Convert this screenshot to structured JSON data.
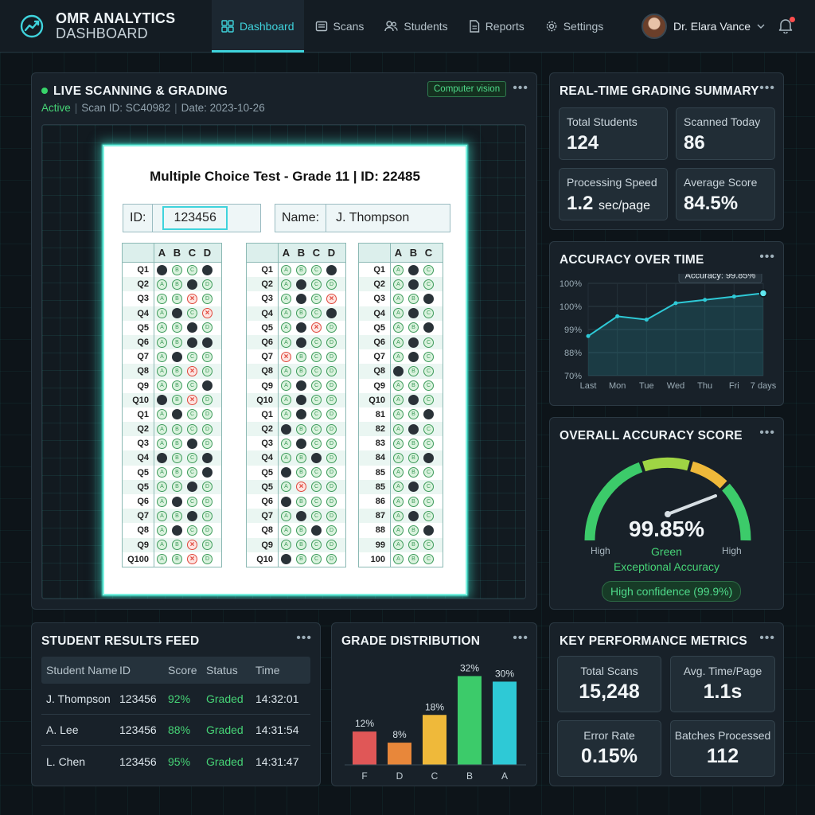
{
  "brand": {
    "line1": "OMR ANALYTICS",
    "line2": "DASHBOARD"
  },
  "nav": [
    {
      "label": "Dashboard",
      "icon": "grid-icon",
      "active": true
    },
    {
      "label": "Scans",
      "icon": "scan-icon"
    },
    {
      "label": "Students",
      "icon": "users-icon"
    },
    {
      "label": "Reports",
      "icon": "document-icon"
    },
    {
      "label": "Settings",
      "icon": "gear-icon"
    }
  ],
  "user": {
    "name": "Dr. Elara Vance"
  },
  "live": {
    "title": "LIVE SCANNING & GRADING",
    "badge": "Computer vision",
    "status": "Active",
    "scan_id": "Scan ID: SC40982",
    "date": "Date: 2023-10-26",
    "sheet": {
      "title": "Multiple Choice Test - Grade 11 | ID: 22485",
      "id_label": "ID:",
      "id_value": "123456",
      "name_label": "Name:",
      "name_value": "J. Thompson",
      "columns": [
        {
          "headers": [
            "A",
            "B",
            "C",
            "D"
          ],
          "rows": [
            {
              "q": "Q1",
              "b": [
                "f",
                "n",
                "n",
                "f"
              ]
            },
            {
              "q": "Q2",
              "b": [
                "n",
                "n",
                "f",
                "n"
              ]
            },
            {
              "q": "Q3",
              "b": [
                "n",
                "n",
                "x",
                "n"
              ]
            },
            {
              "q": "Q4",
              "b": [
                "n",
                "f",
                "n",
                "x"
              ]
            },
            {
              "q": "Q5",
              "b": [
                "n",
                "n",
                "f",
                "n"
              ]
            },
            {
              "q": "Q6",
              "b": [
                "n",
                "n",
                "f",
                "f"
              ]
            },
            {
              "q": "Q7",
              "b": [
                "n",
                "f",
                "n",
                "n"
              ]
            },
            {
              "q": "Q8",
              "b": [
                "n",
                "n",
                "x",
                "n"
              ]
            },
            {
              "q": "Q9",
              "b": [
                "n",
                "n",
                "n",
                "f"
              ]
            },
            {
              "q": "Q10",
              "b": [
                "f",
                "n",
                "x",
                "n"
              ]
            },
            {
              "q": "Q1",
              "b": [
                "n",
                "f",
                "n",
                "n"
              ]
            },
            {
              "q": "Q2",
              "b": [
                "n",
                "n",
                "n",
                "n"
              ]
            },
            {
              "q": "Q3",
              "b": [
                "n",
                "n",
                "f",
                "n"
              ]
            },
            {
              "q": "Q4",
              "b": [
                "f",
                "n",
                "n",
                "f"
              ]
            },
            {
              "q": "Q5",
              "b": [
                "n",
                "n",
                "n",
                "f"
              ]
            },
            {
              "q": "Q5",
              "b": [
                "n",
                "n",
                "f",
                "n"
              ]
            },
            {
              "q": "Q6",
              "b": [
                "n",
                "f",
                "n",
                "n"
              ]
            },
            {
              "q": "Q7",
              "b": [
                "n",
                "n",
                "f",
                "n"
              ]
            },
            {
              "q": "Q8",
              "b": [
                "n",
                "f",
                "n",
                "n"
              ]
            },
            {
              "q": "Q9",
              "b": [
                "n",
                "n",
                "x",
                "n"
              ]
            },
            {
              "q": "Q100",
              "b": [
                "n",
                "n",
                "x",
                "n"
              ]
            }
          ]
        },
        {
          "headers": [
            "A",
            "B",
            "C",
            "D"
          ],
          "rows": [
            {
              "q": "Q1",
              "b": [
                "n",
                "n",
                "n",
                "f"
              ]
            },
            {
              "q": "Q2",
              "b": [
                "n",
                "f",
                "n",
                "n"
              ]
            },
            {
              "q": "Q3",
              "b": [
                "n",
                "f",
                "n",
                "x"
              ]
            },
            {
              "q": "Q4",
              "b": [
                "n",
                "n",
                "n",
                "f"
              ]
            },
            {
              "q": "Q5",
              "b": [
                "n",
                "f",
                "x",
                "n"
              ]
            },
            {
              "q": "Q6",
              "b": [
                "n",
                "f",
                "n",
                "n"
              ]
            },
            {
              "q": "Q7",
              "b": [
                "x",
                "n",
                "n",
                "n"
              ]
            },
            {
              "q": "Q8",
              "b": [
                "n",
                "n",
                "n",
                "n"
              ]
            },
            {
              "q": "Q9",
              "b": [
                "n",
                "f",
                "n",
                "n"
              ]
            },
            {
              "q": "Q10",
              "b": [
                "n",
                "f",
                "n",
                "n"
              ]
            },
            {
              "q": "Q1",
              "b": [
                "n",
                "f",
                "n",
                "n"
              ]
            },
            {
              "q": "Q2",
              "b": [
                "f",
                "n",
                "n",
                "n"
              ]
            },
            {
              "q": "Q3",
              "b": [
                "n",
                "f",
                "n",
                "n"
              ]
            },
            {
              "q": "Q4",
              "b": [
                "n",
                "n",
                "f",
                "n"
              ]
            },
            {
              "q": "Q5",
              "b": [
                "f",
                "n",
                "n",
                "n"
              ]
            },
            {
              "q": "Q5",
              "b": [
                "n",
                "x",
                "n",
                "n"
              ]
            },
            {
              "q": "Q6",
              "b": [
                "f",
                "n",
                "n",
                "n"
              ]
            },
            {
              "q": "Q7",
              "b": [
                "n",
                "f",
                "n",
                "n"
              ]
            },
            {
              "q": "Q8",
              "b": [
                "n",
                "n",
                "f",
                "n"
              ]
            },
            {
              "q": "Q9",
              "b": [
                "n",
                "n",
                "n",
                "n"
              ]
            },
            {
              "q": "Q10",
              "b": [
                "f",
                "n",
                "n",
                "n"
              ]
            }
          ]
        },
        {
          "headers": [
            "A",
            "B",
            "C"
          ],
          "rows": [
            {
              "q": "Q1",
              "b": [
                "n",
                "f",
                "n"
              ]
            },
            {
              "q": "Q2",
              "b": [
                "n",
                "f",
                "n"
              ]
            },
            {
              "q": "Q3",
              "b": [
                "n",
                "n",
                "f"
              ]
            },
            {
              "q": "Q4",
              "b": [
                "n",
                "f",
                "n"
              ]
            },
            {
              "q": "Q5",
              "b": [
                "n",
                "n",
                "f"
              ]
            },
            {
              "q": "Q6",
              "b": [
                "n",
                "f",
                "n"
              ]
            },
            {
              "q": "Q7",
              "b": [
                "n",
                "f",
                "n"
              ]
            },
            {
              "q": "Q8",
              "b": [
                "f",
                "n",
                "n"
              ]
            },
            {
              "q": "Q9",
              "b": [
                "n",
                "n",
                "n"
              ]
            },
            {
              "q": "Q10",
              "b": [
                "n",
                "f",
                "n"
              ]
            },
            {
              "q": "81",
              "b": [
                "n",
                "n",
                "f"
              ]
            },
            {
              "q": "82",
              "b": [
                "n",
                "f",
                "n"
              ]
            },
            {
              "q": "83",
              "b": [
                "n",
                "n",
                "n"
              ]
            },
            {
              "q": "84",
              "b": [
                "n",
                "n",
                "f"
              ]
            },
            {
              "q": "85",
              "b": [
                "n",
                "n",
                "n"
              ]
            },
            {
              "q": "85",
              "b": [
                "n",
                "f",
                "n"
              ]
            },
            {
              "q": "86",
              "b": [
                "n",
                "n",
                "n"
              ]
            },
            {
              "q": "87",
              "b": [
                "n",
                "f",
                "n"
              ]
            },
            {
              "q": "88",
              "b": [
                "n",
                "n",
                "f"
              ]
            },
            {
              "q": "99",
              "b": [
                "n",
                "n",
                "n"
              ]
            },
            {
              "q": "100",
              "b": [
                "n",
                "n",
                "n"
              ]
            }
          ]
        }
      ]
    }
  },
  "summary": {
    "title": "REAL-TIME GRADING SUMMARY",
    "cards": [
      {
        "label": "Total Students",
        "value": "124",
        "unit": ""
      },
      {
        "label": "Scanned Today",
        "value": "86",
        "unit": ""
      },
      {
        "label": "Processing Speed",
        "value": "1.2",
        "unit": "sec/page"
      },
      {
        "label": "Average Score",
        "value": "84.5%",
        "unit": ""
      }
    ]
  },
  "accuracy": {
    "title": "ACCURACY OVER TIME",
    "tooltip": "Accuracy: 99.85%",
    "chart_data": {
      "type": "line",
      "x": [
        "Last",
        "Mon",
        "Tue",
        "Wed",
        "Thu",
        "Fri",
        "7 days"
      ],
      "y": [
        99.2,
        99.5,
        99.45,
        99.7,
        99.75,
        99.8,
        99.85
      ],
      "y_tick_labels": [
        "100%",
        "100%",
        "99%",
        "88%",
        "70%"
      ],
      "grid": true
    }
  },
  "gauge": {
    "title": "OVERALL ACCURACY SCORE",
    "value_text": "99.85%",
    "value": 99.85,
    "color_label": "Green",
    "left_label": "High",
    "right_label": "High",
    "caption": "Exceptional Accuracy",
    "confidence": "High confidence (99.9%)"
  },
  "feed": {
    "title": "STUDENT RESULTS FEED",
    "headers": [
      "Student Name",
      "ID",
      "Score",
      "Status",
      "Time"
    ],
    "rows": [
      {
        "name": "J. Thompson",
        "id": "123456",
        "score": "92%",
        "status": "Graded",
        "time": "14:32:01"
      },
      {
        "name": "A. Lee",
        "id": "123456",
        "score": "88%",
        "status": "Graded",
        "time": "14:31:54"
      },
      {
        "name": "L. Chen",
        "id": "123456",
        "score": "95%",
        "status": "Graded",
        "time": "14:31:47"
      }
    ]
  },
  "grades": {
    "title": "GRADE DISTRIBUTION",
    "chart_data": {
      "type": "bar",
      "categories": [
        "F",
        "D",
        "C",
        "B",
        "A"
      ],
      "values": [
        12,
        8,
        18,
        32,
        30
      ],
      "labels": [
        "12%",
        "8%",
        "18%",
        "32%",
        "30%"
      ],
      "colors": [
        "#e05757",
        "#e8873a",
        "#efb93a",
        "#3ccb6a",
        "#2ec9d6"
      ],
      "ylim": [
        0,
        35
      ]
    }
  },
  "kpi": {
    "title": "KEY PERFORMANCE METRICS",
    "cards": [
      {
        "label": "Total Scans",
        "value": "15,248"
      },
      {
        "label": "Avg. Time/Page",
        "value": "1.1s"
      },
      {
        "label": "Error Rate",
        "value": "0.15%"
      },
      {
        "label": "Batches Processed",
        "value": "112"
      }
    ]
  },
  "colors": {
    "accent": "#3fd3dc",
    "success": "#46d476",
    "danger": "#e0473b"
  }
}
